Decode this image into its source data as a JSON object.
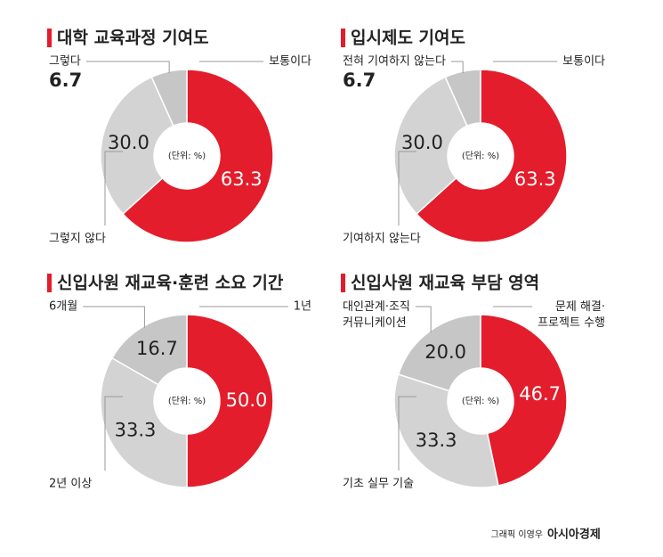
{
  "chart_data": [
    {
      "type": "pie",
      "title": "대학 교육과정 기여도",
      "unit_label": "(단위: %)",
      "categories": [
        "보통이다",
        "그렇지 않다",
        "그렇다"
      ],
      "values": [
        63.3,
        30,
        6.7
      ],
      "value_labels": [
        "63.3",
        "30.0",
        "6.7"
      ],
      "colors": [
        "#e31d2b",
        "#d3d3d3",
        "#c6c6c6"
      ]
    },
    {
      "type": "pie",
      "title": "입시제도 기여도",
      "unit_label": "(단위: %)",
      "categories": [
        "보통이다",
        "기여하지 않는다",
        "전혀 기여하지 않는다"
      ],
      "values": [
        63.3,
        30,
        6.7
      ],
      "value_labels": [
        "63.3",
        "30.0",
        "6.7"
      ],
      "colors": [
        "#e31d2b",
        "#d3d3d3",
        "#c6c6c6"
      ]
    },
    {
      "type": "pie",
      "title": "신입사원 재교육·훈련 소요 기간",
      "unit_label": "(단위: %)",
      "categories": [
        "1년",
        "2년 이상",
        "6개월"
      ],
      "values": [
        50,
        33.3,
        16.7
      ],
      "value_labels": [
        "50.0",
        "33.3",
        "16.7"
      ],
      "colors": [
        "#e31d2b",
        "#d3d3d3",
        "#c6c6c6"
      ]
    },
    {
      "type": "pie",
      "title": "신입사원 재교육 부담 영역",
      "unit_label": "(단위: %)",
      "categories": [
        "문제 해결·\n프로젝트 수행",
        "기초 실무 기술",
        "대인관계·조직\n커뮤니케이션"
      ],
      "values": [
        46.7,
        33.3,
        20
      ],
      "value_labels": [
        "46.7",
        "33.3",
        "20.0"
      ],
      "colors": [
        "#e31d2b",
        "#d3d3d3",
        "#c6c6c6"
      ]
    }
  ],
  "credit": {
    "author": "그래픽 이영우",
    "source": "아시아경제"
  }
}
